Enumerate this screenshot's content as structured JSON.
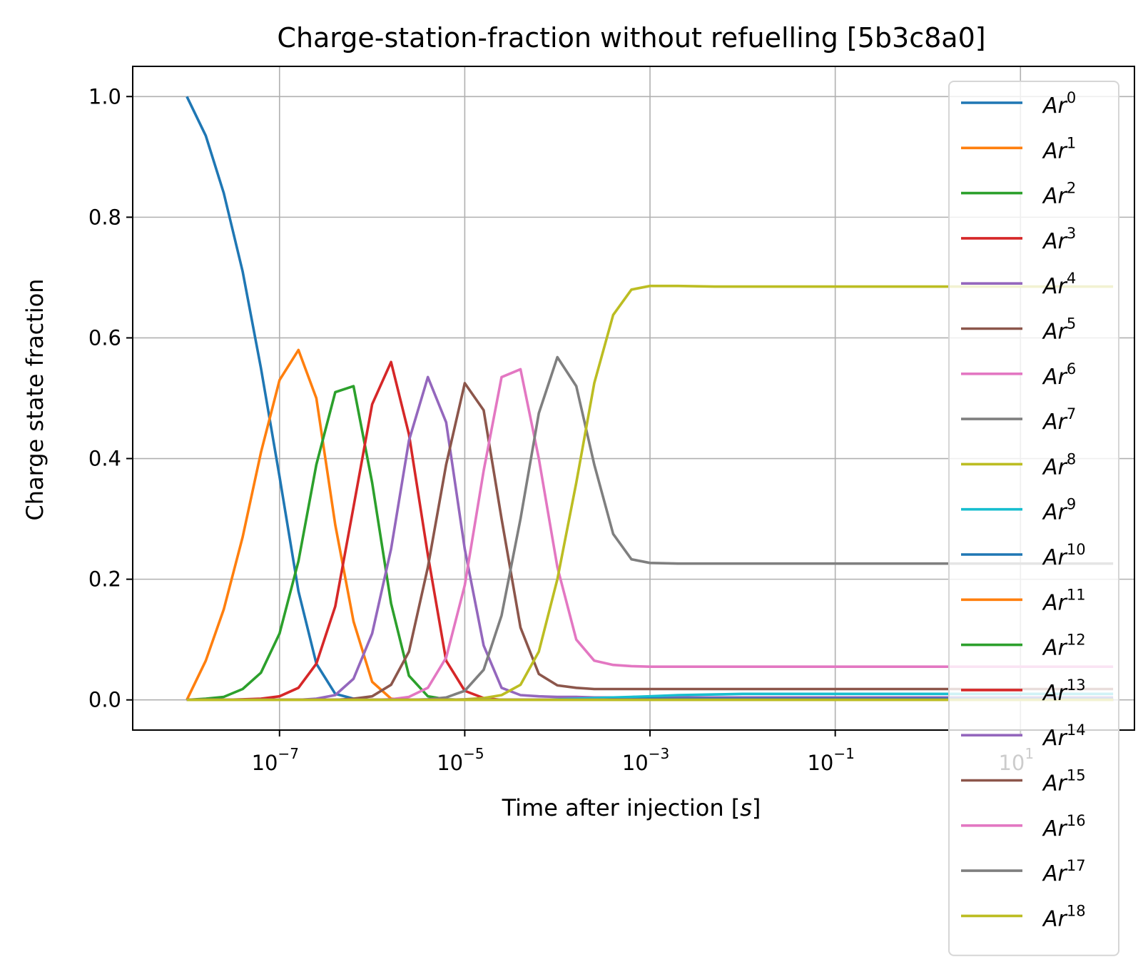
{
  "chart_data": {
    "type": "line",
    "title": "Charge-station-fraction without refuelling [5b3c8a0]",
    "xlabel": "Time after injection [s]",
    "xlabel_text": "Time after injection [",
    "xlabel_italic": "s",
    "xlabel_suffix": "]",
    "ylabel": "Charge state fraction",
    "xscale": "log",
    "xlim": [
      2.6e-09,
      170
    ],
    "ylim": [
      -0.05,
      1.05
    ],
    "grid": true,
    "legend_placement": "right",
    "x_ticks": [
      {
        "value": 1e-07,
        "base": "10",
        "exp": "−7"
      },
      {
        "value": 1e-05,
        "base": "10",
        "exp": "−5"
      },
      {
        "value": 0.001,
        "base": "10",
        "exp": "−3"
      },
      {
        "value": 0.1,
        "base": "10",
        "exp": "−1"
      },
      {
        "value": 10,
        "base": "10",
        "exp": "1"
      }
    ],
    "y_ticks": [
      {
        "value": 0.0,
        "label": "0.0"
      },
      {
        "value": 0.2,
        "label": "0.2"
      },
      {
        "value": 0.4,
        "label": "0.4"
      },
      {
        "value": 0.6,
        "label": "0.6"
      },
      {
        "value": 0.8,
        "label": "0.8"
      },
      {
        "value": 1.0,
        "label": "1.0"
      }
    ],
    "x": [
      1e-08,
      1.6e-08,
      2.5e-08,
      4e-08,
      6.3e-08,
      1e-07,
      1.6e-07,
      2.5e-07,
      4e-07,
      6.3e-07,
      1e-06,
      1.6e-06,
      2.5e-06,
      4e-06,
      6.3e-06,
      1e-05,
      1.6e-05,
      2.5e-05,
      4e-05,
      6.3e-05,
      0.0001,
      0.00016,
      0.00025,
      0.0004,
      0.00063,
      0.001,
      0.002,
      0.005,
      0.01,
      1,
      100
    ],
    "series": [
      {
        "name": "Ar",
        "charge": "0",
        "color": "#1f77b4",
        "values": [
          1.0,
          0.935,
          0.84,
          0.71,
          0.55,
          0.37,
          0.18,
          0.06,
          0.01,
          0.002,
          0,
          0,
          0,
          0,
          0,
          0,
          0,
          0,
          0,
          0,
          0,
          0,
          0,
          0,
          0,
          0,
          0,
          0,
          0,
          0,
          0
        ]
      },
      {
        "name": "Ar",
        "charge": "1",
        "color": "#ff7f0e",
        "values": [
          0,
          0.065,
          0.15,
          0.27,
          0.41,
          0.53,
          0.58,
          0.5,
          0.29,
          0.13,
          0.03,
          0.002,
          0,
          0,
          0,
          0,
          0,
          0,
          0,
          0,
          0,
          0,
          0,
          0,
          0,
          0,
          0,
          0,
          0,
          0,
          0
        ]
      },
      {
        "name": "Ar",
        "charge": "2",
        "color": "#2ca02c",
        "values": [
          0,
          0.002,
          0.005,
          0.018,
          0.045,
          0.11,
          0.23,
          0.39,
          0.51,
          0.52,
          0.36,
          0.16,
          0.04,
          0.006,
          0.001,
          0,
          0,
          0,
          0,
          0,
          0,
          0,
          0,
          0,
          0,
          0,
          0,
          0,
          0,
          0,
          0
        ]
      },
      {
        "name": "Ar",
        "charge": "3",
        "color": "#d62728",
        "values": [
          0,
          0,
          0,
          0.001,
          0.002,
          0.006,
          0.02,
          0.06,
          0.155,
          0.32,
          0.49,
          0.56,
          0.44,
          0.24,
          0.065,
          0.015,
          0.003,
          0,
          0,
          0,
          0,
          0,
          0,
          0,
          0,
          0,
          0,
          0,
          0,
          0,
          0
        ]
      },
      {
        "name": "Ar",
        "charge": "4",
        "color": "#9467bd",
        "values": [
          0,
          0,
          0,
          0,
          0,
          0,
          0,
          0.002,
          0.008,
          0.035,
          0.11,
          0.25,
          0.43,
          0.535,
          0.46,
          0.25,
          0.09,
          0.02,
          0.008,
          0.006,
          0.005,
          0.005,
          0.004,
          0.004,
          0.004,
          0.004,
          0.004,
          0.004,
          0.004,
          0.004,
          0.004
        ]
      },
      {
        "name": "Ar",
        "charge": "5",
        "color": "#8c564b",
        "values": [
          0,
          0,
          0,
          0,
          0,
          0,
          0,
          0,
          0,
          0.002,
          0.006,
          0.025,
          0.08,
          0.22,
          0.39,
          0.525,
          0.48,
          0.3,
          0.12,
          0.043,
          0.024,
          0.02,
          0.018,
          0.018,
          0.018,
          0.018,
          0.018,
          0.018,
          0.018,
          0.018,
          0.018
        ]
      },
      {
        "name": "Ar",
        "charge": "6",
        "color": "#e377c2",
        "values": [
          0,
          0,
          0,
          0,
          0,
          0,
          0,
          0,
          0,
          0,
          0,
          0.001,
          0.005,
          0.02,
          0.07,
          0.19,
          0.38,
          0.535,
          0.548,
          0.4,
          0.22,
          0.1,
          0.065,
          0.058,
          0.056,
          0.055,
          0.055,
          0.055,
          0.055,
          0.055,
          0.055
        ]
      },
      {
        "name": "Ar",
        "charge": "7",
        "color": "#7f7f7f",
        "values": [
          0,
          0,
          0,
          0,
          0,
          0,
          0,
          0,
          0,
          0,
          0,
          0,
          0,
          0.001,
          0.004,
          0.015,
          0.05,
          0.14,
          0.3,
          0.475,
          0.568,
          0.52,
          0.39,
          0.275,
          0.233,
          0.227,
          0.226,
          0.226,
          0.226,
          0.226,
          0.226
        ]
      },
      {
        "name": "Ar",
        "charge": "8",
        "color": "#bcbd22",
        "values": [
          0,
          0,
          0,
          0,
          0,
          0,
          0,
          0,
          0,
          0,
          0,
          0,
          0,
          0,
          0,
          0.001,
          0.003,
          0.008,
          0.025,
          0.08,
          0.2,
          0.36,
          0.525,
          0.638,
          0.68,
          0.686,
          0.686,
          0.685,
          0.685,
          0.685,
          0.685
        ]
      },
      {
        "name": "Ar",
        "charge": "9",
        "color": "#17becf",
        "values": [
          0,
          0,
          0,
          0,
          0,
          0,
          0,
          0,
          0,
          0,
          0,
          0,
          0,
          0,
          0,
          0,
          0,
          0,
          0,
          0,
          0.001,
          0.002,
          0.003,
          0.004,
          0.005,
          0.006,
          0.008,
          0.009,
          0.01,
          0.01,
          0.01
        ]
      },
      {
        "name": "Ar",
        "charge": "10",
        "color": "#1f77b4",
        "values": [
          0,
          0,
          0,
          0,
          0,
          0,
          0,
          0,
          0,
          0,
          0,
          0,
          0,
          0,
          0,
          0,
          0,
          0,
          0,
          0,
          0,
          0,
          0,
          0.001,
          0.001,
          0.002,
          0.002,
          0.002,
          0.002,
          0.002,
          0.002
        ]
      },
      {
        "name": "Ar",
        "charge": "11",
        "color": "#ff7f0e",
        "values": [
          0,
          0,
          0,
          0,
          0,
          0,
          0,
          0,
          0,
          0,
          0,
          0,
          0,
          0,
          0,
          0,
          0,
          0,
          0,
          0,
          0,
          0,
          0,
          0,
          0,
          0,
          0,
          0,
          0,
          0,
          0
        ]
      },
      {
        "name": "Ar",
        "charge": "12",
        "color": "#2ca02c",
        "values": [
          0,
          0,
          0,
          0,
          0,
          0,
          0,
          0,
          0,
          0,
          0,
          0,
          0,
          0,
          0,
          0,
          0,
          0,
          0,
          0,
          0,
          0,
          0,
          0,
          0,
          0,
          0,
          0,
          0,
          0,
          0
        ]
      },
      {
        "name": "Ar",
        "charge": "13",
        "color": "#d62728",
        "values": [
          0,
          0,
          0,
          0,
          0,
          0,
          0,
          0,
          0,
          0,
          0,
          0,
          0,
          0,
          0,
          0,
          0,
          0,
          0,
          0,
          0,
          0,
          0,
          0,
          0,
          0,
          0,
          0,
          0,
          0,
          0
        ]
      },
      {
        "name": "Ar",
        "charge": "14",
        "color": "#9467bd",
        "values": [
          0,
          0,
          0,
          0,
          0,
          0,
          0,
          0,
          0,
          0,
          0,
          0,
          0,
          0,
          0,
          0,
          0,
          0,
          0,
          0,
          0,
          0,
          0,
          0,
          0,
          0,
          0,
          0,
          0,
          0,
          0
        ]
      },
      {
        "name": "Ar",
        "charge": "15",
        "color": "#8c564b",
        "values": [
          0,
          0,
          0,
          0,
          0,
          0,
          0,
          0,
          0,
          0,
          0,
          0,
          0,
          0,
          0,
          0,
          0,
          0,
          0,
          0,
          0,
          0,
          0,
          0,
          0,
          0,
          0,
          0,
          0,
          0,
          0
        ]
      },
      {
        "name": "Ar",
        "charge": "16",
        "color": "#e377c2",
        "values": [
          0,
          0,
          0,
          0,
          0,
          0,
          0,
          0,
          0,
          0,
          0,
          0,
          0,
          0,
          0,
          0,
          0,
          0,
          0,
          0,
          0,
          0,
          0,
          0,
          0,
          0,
          0,
          0,
          0,
          0,
          0
        ]
      },
      {
        "name": "Ar",
        "charge": "17",
        "color": "#7f7f7f",
        "values": [
          0,
          0,
          0,
          0,
          0,
          0,
          0,
          0,
          0,
          0,
          0,
          0,
          0,
          0,
          0,
          0,
          0,
          0,
          0,
          0,
          0,
          0,
          0,
          0,
          0,
          0,
          0,
          0,
          0,
          0,
          0
        ]
      },
      {
        "name": "Ar",
        "charge": "18",
        "color": "#bcbd22",
        "values": [
          0,
          0,
          0,
          0,
          0,
          0,
          0,
          0,
          0,
          0,
          0,
          0,
          0,
          0,
          0,
          0,
          0,
          0,
          0,
          0,
          0,
          0,
          0,
          0,
          0,
          0,
          0,
          0,
          0,
          0,
          0
        ]
      }
    ]
  }
}
